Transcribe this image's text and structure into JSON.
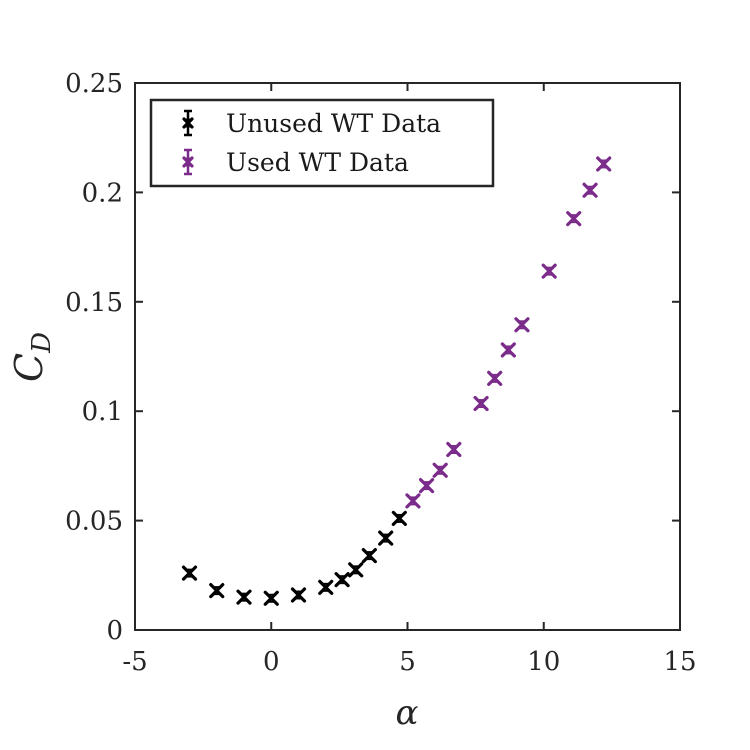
{
  "chart_data": {
    "type": "scatter",
    "xlabel": "α",
    "ylabel_main": "C",
    "ylabel_sub": "D",
    "xlim": [
      -5,
      15
    ],
    "ylim": [
      0,
      0.25
    ],
    "xticks": [
      -5,
      0,
      5,
      10,
      15
    ],
    "xtick_labels": [
      "-5",
      "0",
      "5",
      "10",
      "15"
    ],
    "yticks": [
      0,
      0.05,
      0.1,
      0.15,
      0.2,
      0.25
    ],
    "ytick_labels": [
      "0",
      "0.05",
      "0.1",
      "0.15",
      "0.2",
      "0.25"
    ],
    "grid": false,
    "legend_position": "top-left",
    "series": [
      {
        "name": "Unused WT Data",
        "color": "#000000",
        "marker": "x",
        "x": [
          -3,
          -2,
          -1,
          0,
          1,
          2,
          2.6,
          3.1,
          3.6,
          4.2,
          4.7
        ],
        "y": [
          0.026,
          0.018,
          0.015,
          0.0145,
          0.016,
          0.0195,
          0.023,
          0.0275,
          0.034,
          0.042,
          0.051
        ]
      },
      {
        "name": "Used WT Data",
        "color": "#7B2C8A",
        "marker": "x",
        "x": [
          5.2,
          5.7,
          6.2,
          6.7,
          7.7,
          8.2,
          8.7,
          9.2,
          10.2,
          11.1,
          11.7,
          12.2
        ],
        "y": [
          0.059,
          0.066,
          0.073,
          0.0825,
          0.1035,
          0.115,
          0.128,
          0.1395,
          0.164,
          0.188,
          0.201,
          0.213
        ]
      }
    ]
  }
}
